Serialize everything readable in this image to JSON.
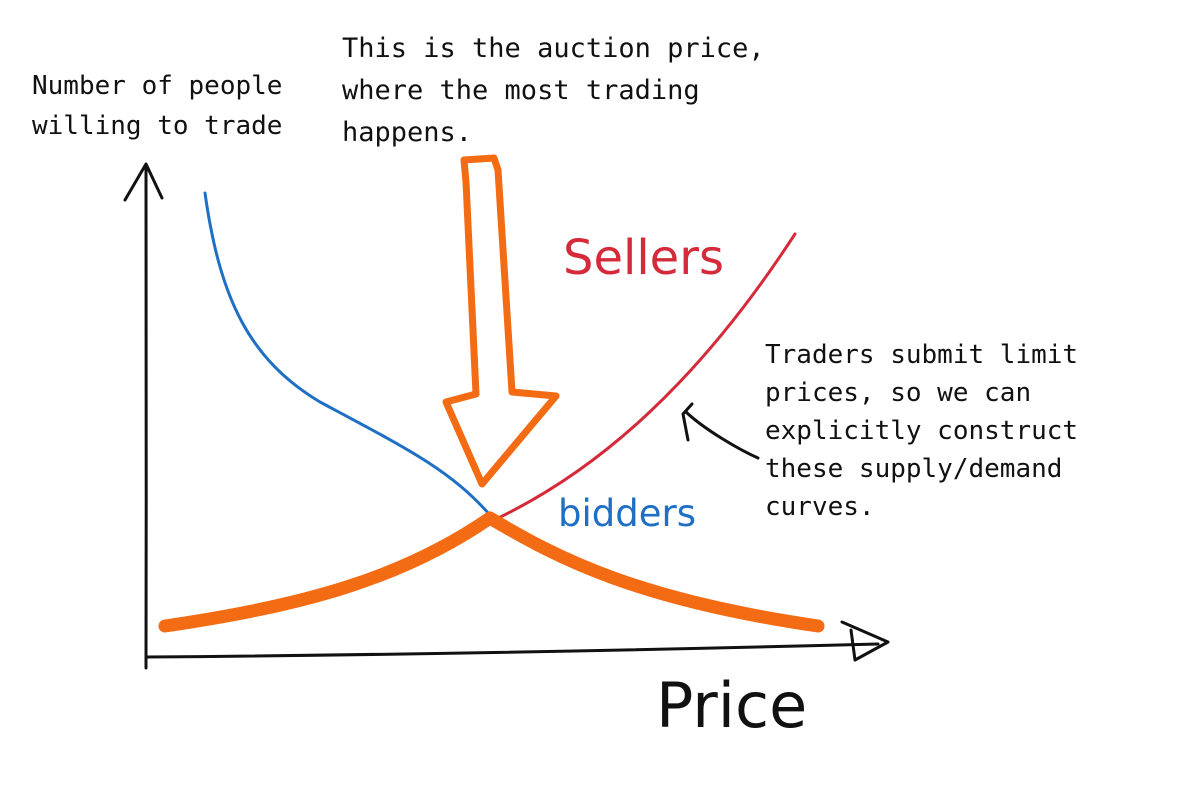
{
  "y_axis_label": "Number of people\nwilling to trade",
  "x_axis_label": "Price",
  "annotation_auction": "This is the auction price,\nwhere the most trading\nhappens.",
  "annotation_traders": "Traders submit limit\nprices, so we can\nexplicitly construct\nthese supply/demand\ncurves.",
  "sellers_label": "Sellers",
  "bidders_label": "bidders",
  "colors": {
    "axes": "#111111",
    "text": "#111111",
    "sellers": "#d42a3a",
    "bidders": "#1f6fc4",
    "highlight": "#f36b13"
  }
}
